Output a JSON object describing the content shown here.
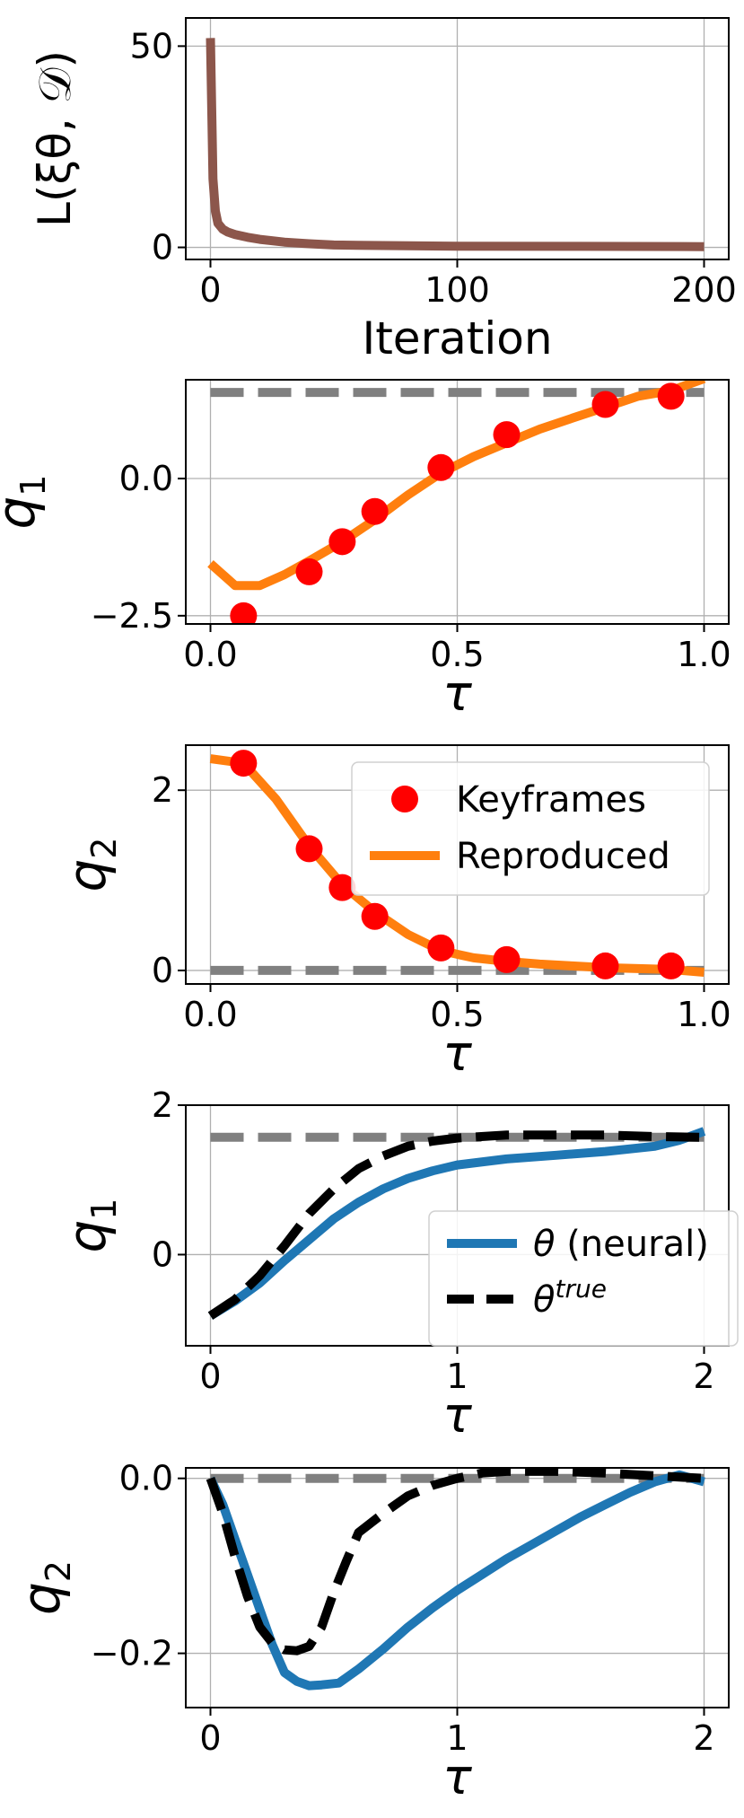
{
  "chart_data": [
    {
      "type": "line",
      "xlabel": "Iteration",
      "ylabel": "L(ξθ, 𝒟)",
      "xlim": [
        -10,
        210
      ],
      "ylim": [
        -3,
        57
      ],
      "xticks": [
        0,
        100,
        200
      ],
      "yticks": [
        0,
        50
      ],
      "grid": true,
      "series": [
        {
          "color": "#8c564b",
          "style": "solid",
          "x": [
            0,
            1,
            2,
            3,
            5,
            7,
            10,
            15,
            20,
            30,
            40,
            50,
            60,
            80,
            100,
            150,
            200
          ],
          "y": [
            52,
            17,
            9,
            6,
            4.5,
            3.8,
            3.2,
            2.5,
            2.0,
            1.3,
            0.9,
            0.6,
            0.5,
            0.4,
            0.3,
            0.25,
            0.2
          ]
        }
      ]
    },
    {
      "type": "line",
      "xlabel": "τ",
      "ylabel": "q1",
      "xlim": [
        -0.05,
        1.05
      ],
      "ylim": [
        -2.65,
        1.8
      ],
      "xticks": [
        0.0,
        0.5,
        1.0
      ],
      "ytick_labels": [
        "−2.5",
        "0.0"
      ],
      "yticks": [
        -2.5,
        0.0
      ],
      "grid": true,
      "series": [
        {
          "color": "#808080",
          "style": "dashed",
          "x": [
            0.0,
            1.0
          ],
          "y": [
            1.57,
            1.57
          ]
        },
        {
          "name": "Reproduced",
          "color": "#ff7f0e",
          "style": "solid",
          "x": [
            0.0,
            0.05,
            0.1,
            0.15,
            0.2,
            0.267,
            0.333,
            0.4,
            0.467,
            0.533,
            0.6,
            0.667,
            0.733,
            0.8,
            0.867,
            0.933,
            1.0
          ],
          "y": [
            -1.55,
            -1.95,
            -1.95,
            -1.75,
            -1.5,
            -1.15,
            -0.75,
            -0.3,
            0.1,
            0.4,
            0.65,
            0.9,
            1.1,
            1.3,
            1.5,
            1.6,
            1.82
          ]
        },
        {
          "name": "Keyframes",
          "color": "#ff0000",
          "style": "markers",
          "x": [
            0.067,
            0.2,
            0.267,
            0.333,
            0.467,
            0.6,
            0.8,
            0.933
          ],
          "y": [
            -2.5,
            -1.7,
            -1.15,
            -0.6,
            0.2,
            0.8,
            1.35,
            1.5
          ]
        }
      ]
    },
    {
      "type": "line",
      "xlabel": "τ",
      "ylabel": "q2",
      "xlim": [
        -0.05,
        1.05
      ],
      "ylim": [
        -0.15,
        2.5
      ],
      "xticks": [
        0.0,
        0.5,
        1.0
      ],
      "yticks": [
        0,
        2
      ],
      "grid": true,
      "legend": {
        "placement": "upper right",
        "entries": [
          "Keyframes",
          "Reproduced"
        ]
      },
      "series": [
        {
          "color": "#808080",
          "style": "dashed",
          "x": [
            0.0,
            1.0
          ],
          "y": [
            0.0,
            0.0
          ]
        },
        {
          "name": "Reproduced",
          "color": "#ff7f0e",
          "style": "solid",
          "x": [
            0.0,
            0.067,
            0.133,
            0.2,
            0.267,
            0.333,
            0.4,
            0.467,
            0.533,
            0.6,
            0.667,
            0.733,
            0.8,
            0.867,
            0.933,
            1.0
          ],
          "y": [
            2.35,
            2.3,
            1.9,
            1.38,
            0.95,
            0.65,
            0.4,
            0.22,
            0.14,
            0.1,
            0.07,
            0.05,
            0.03,
            0.02,
            0.01,
            -0.02
          ]
        },
        {
          "name": "Keyframes",
          "color": "#ff0000",
          "style": "markers",
          "x": [
            0.067,
            0.2,
            0.267,
            0.333,
            0.467,
            0.6,
            0.8,
            0.933
          ],
          "y": [
            2.3,
            1.35,
            0.92,
            0.6,
            0.25,
            0.12,
            0.05,
            0.05
          ]
        }
      ]
    },
    {
      "type": "line",
      "xlabel": "τ",
      "ylabel": "q1",
      "xlim": [
        -0.1,
        2.1
      ],
      "ylim": [
        -1.22,
        2.0
      ],
      "xticks": [
        0,
        1,
        2
      ],
      "yticks": [
        0,
        2
      ],
      "grid": true,
      "legend": {
        "placement": "center right",
        "entries": [
          "θ (neural)",
          "θtrue"
        ]
      },
      "series": [
        {
          "color": "#808080",
          "style": "dashed",
          "x": [
            0.0,
            2.0
          ],
          "y": [
            1.57,
            1.57
          ]
        },
        {
          "name": "θ (neural)",
          "color": "#1f77b4",
          "style": "solid",
          "x": [
            0.0,
            0.1,
            0.2,
            0.3,
            0.4,
            0.5,
            0.6,
            0.7,
            0.8,
            0.9,
            1.0,
            1.2,
            1.4,
            1.6,
            1.8,
            1.9,
            2.0
          ],
          "y": [
            -0.82,
            -0.62,
            -0.38,
            -0.08,
            0.2,
            0.48,
            0.7,
            0.88,
            1.02,
            1.12,
            1.2,
            1.28,
            1.33,
            1.38,
            1.45,
            1.53,
            1.65
          ]
        },
        {
          "name": "θtrue",
          "color": "#000000",
          "style": "dashed",
          "x": [
            0.0,
            0.1,
            0.2,
            0.3,
            0.4,
            0.5,
            0.6,
            0.7,
            0.8,
            0.9,
            1.0,
            1.2,
            1.4,
            1.6,
            1.8,
            2.0
          ],
          "y": [
            -0.82,
            -0.6,
            -0.28,
            0.12,
            0.55,
            0.88,
            1.15,
            1.32,
            1.45,
            1.52,
            1.56,
            1.6,
            1.6,
            1.6,
            1.58,
            1.57
          ]
        }
      ]
    },
    {
      "type": "line",
      "xlabel": "τ",
      "ylabel": "q2",
      "xlim": [
        -0.1,
        2.1
      ],
      "ylim": [
        -0.262,
        0.012
      ],
      "xticks": [
        0,
        1,
        2
      ],
      "ytick_labels": [
        "−0.2",
        "0.0"
      ],
      "yticks": [
        -0.2,
        0.0
      ],
      "grid": true,
      "series": [
        {
          "color": "#808080",
          "style": "dashed",
          "x": [
            0.0,
            2.0
          ],
          "y": [
            0.0,
            0.0
          ]
        },
        {
          "name": "θ (neural)",
          "color": "#1f77b4",
          "style": "solid",
          "x": [
            0.0,
            0.05,
            0.1,
            0.15,
            0.2,
            0.25,
            0.3,
            0.35,
            0.4,
            0.45,
            0.52,
            0.6,
            0.7,
            0.8,
            0.9,
            1.0,
            1.1,
            1.2,
            1.3,
            1.4,
            1.5,
            1.6,
            1.7,
            1.8,
            1.9,
            2.0
          ],
          "y": [
            0.0,
            -0.03,
            -0.07,
            -0.11,
            -0.15,
            -0.19,
            -0.222,
            -0.232,
            -0.237,
            -0.236,
            -0.234,
            -0.218,
            -0.195,
            -0.17,
            -0.148,
            -0.128,
            -0.11,
            -0.092,
            -0.076,
            -0.06,
            -0.044,
            -0.03,
            -0.016,
            -0.004,
            0.004,
            -0.004
          ]
        },
        {
          "name": "θtrue",
          "color": "#000000",
          "style": "dashed",
          "x": [
            0.0,
            0.05,
            0.1,
            0.15,
            0.2,
            0.25,
            0.3,
            0.35,
            0.4,
            0.45,
            0.5,
            0.55,
            0.6,
            0.7,
            0.8,
            0.9,
            1.0,
            1.1,
            1.2,
            1.4,
            1.6,
            1.8,
            2.0
          ],
          "y": [
            0.0,
            -0.04,
            -0.09,
            -0.135,
            -0.17,
            -0.188,
            -0.196,
            -0.197,
            -0.192,
            -0.17,
            -0.13,
            -0.095,
            -0.062,
            -0.04,
            -0.02,
            -0.008,
            0.0,
            0.006,
            0.008,
            0.008,
            0.006,
            0.003,
            0.0
          ]
        }
      ]
    }
  ]
}
